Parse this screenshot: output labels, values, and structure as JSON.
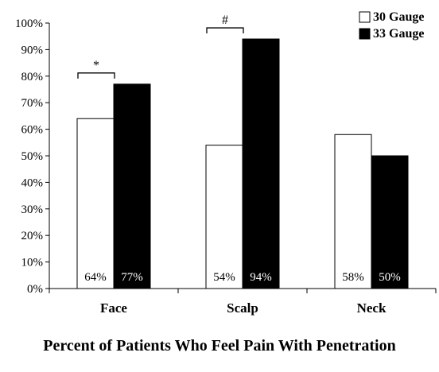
{
  "chart_data": {
    "type": "bar",
    "title": "Percent of Patients Who Feel Pain With Penetration",
    "xlabel": "",
    "ylabel": "",
    "categories": [
      "Face",
      "Scalp",
      "Neck"
    ],
    "series": [
      {
        "name": "30 Gauge",
        "values": [
          64,
          54,
          58
        ],
        "labels": [
          "64%",
          "54%",
          "58%"
        ],
        "fill": "#ffffff"
      },
      {
        "name": "33 Gauge",
        "values": [
          77,
          94,
          50
        ],
        "labels": [
          "77%",
          "94%",
          "50%"
        ],
        "fill": "#000000"
      }
    ],
    "ylim": [
      0,
      100
    ],
    "yticks": [
      0,
      10,
      20,
      30,
      40,
      50,
      60,
      70,
      80,
      90,
      100
    ],
    "ytick_labels": [
      "0%",
      "10%",
      "20%",
      "30%",
      "40%",
      "50%",
      "60%",
      "70%",
      "80%",
      "90%",
      "100%"
    ],
    "grid": false,
    "legend": "top-right",
    "annotations": [
      {
        "category": "Face",
        "text": "*"
      },
      {
        "category": "Scalp",
        "text": "#"
      }
    ]
  }
}
